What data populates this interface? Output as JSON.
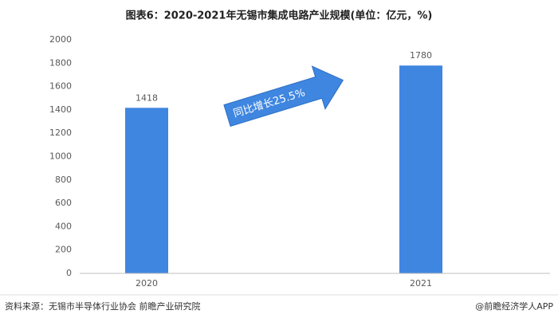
{
  "chart_data": {
    "type": "bar",
    "title": "图表6：2020-2021年无锡市集成电路产业规模(单位：亿元，%)",
    "categories": [
      "2020",
      "2021"
    ],
    "values": [
      1418,
      1780
    ],
    "color": "#3f86e0",
    "ylim": [
      0,
      2000
    ],
    "yticks": [
      0,
      200,
      400,
      600,
      800,
      1000,
      1200,
      1400,
      1600,
      1800,
      2000
    ],
    "annotation": "同比增长25.5%",
    "source": "资料来源：无锡市半导体行业协会 前瞻产业研究院",
    "brand": "@前瞻经济学人APP"
  }
}
